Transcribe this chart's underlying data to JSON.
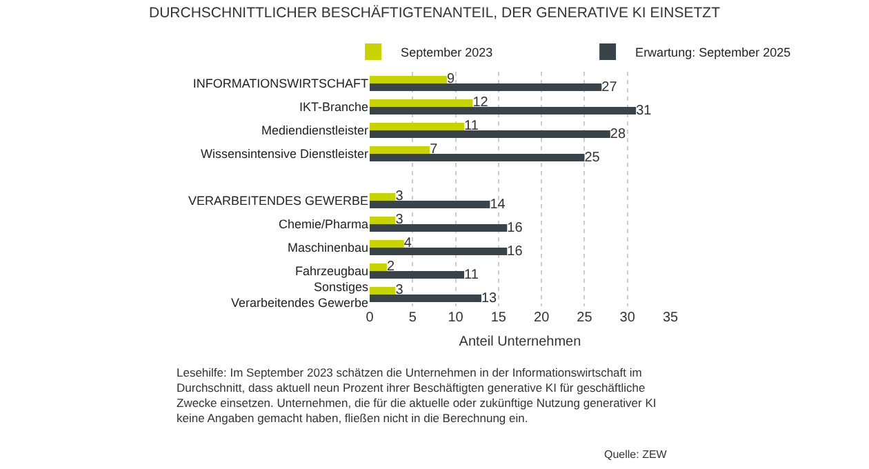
{
  "chart_data": {
    "type": "bar",
    "orientation": "horizontal",
    "title": "DURCHSCHNITTLICHER BESCHÄFTIGTENANTEIL, DER GENERATIVE KI EINSETZT",
    "categories": [
      "INFORMATIONSWIRTSCHAFT",
      "IKT-Branche",
      "Mediendienstleister",
      "Wissensintensive Dienstleister",
      null,
      "VERARBEITENDES GEWERBE",
      "Chemie/Pharma",
      "Maschinenbau",
      "Fahrzeugbau",
      "Sonstiges Verarbeitendes Gewerbe"
    ],
    "series": [
      {
        "name": "September 2023",
        "color": "#c8d400",
        "values": [
          9,
          12,
          11,
          7,
          null,
          3,
          3,
          4,
          2,
          3
        ]
      },
      {
        "name": "Erwartung: September 2025",
        "color": "#38434a",
        "values": [
          27,
          31,
          28,
          25,
          null,
          14,
          16,
          16,
          11,
          13
        ]
      }
    ],
    "xlabel": "Anteil Unternehmen",
    "xlim": [
      0,
      35
    ],
    "xticks": [
      0,
      5,
      10,
      15,
      20,
      25,
      30,
      35
    ],
    "grid": "x",
    "legend": "top",
    "data_labels": true,
    "annotations": [
      "Lesehilfe: Im September 2023 schätzen die Unternehmen in der Informationswirtschaft im Durchschnitt, dass aktuell neun Prozent ihrer Beschäftigten generative KI für geschäftliche Zwecke einsetzen. Unternehmen, die für die aktuelle oder zukünftige Nutzung generativer KI keine Angaben gemacht haben, fließen nicht in die Berechnung ein.",
      "Quelle: ZEW"
    ]
  }
}
